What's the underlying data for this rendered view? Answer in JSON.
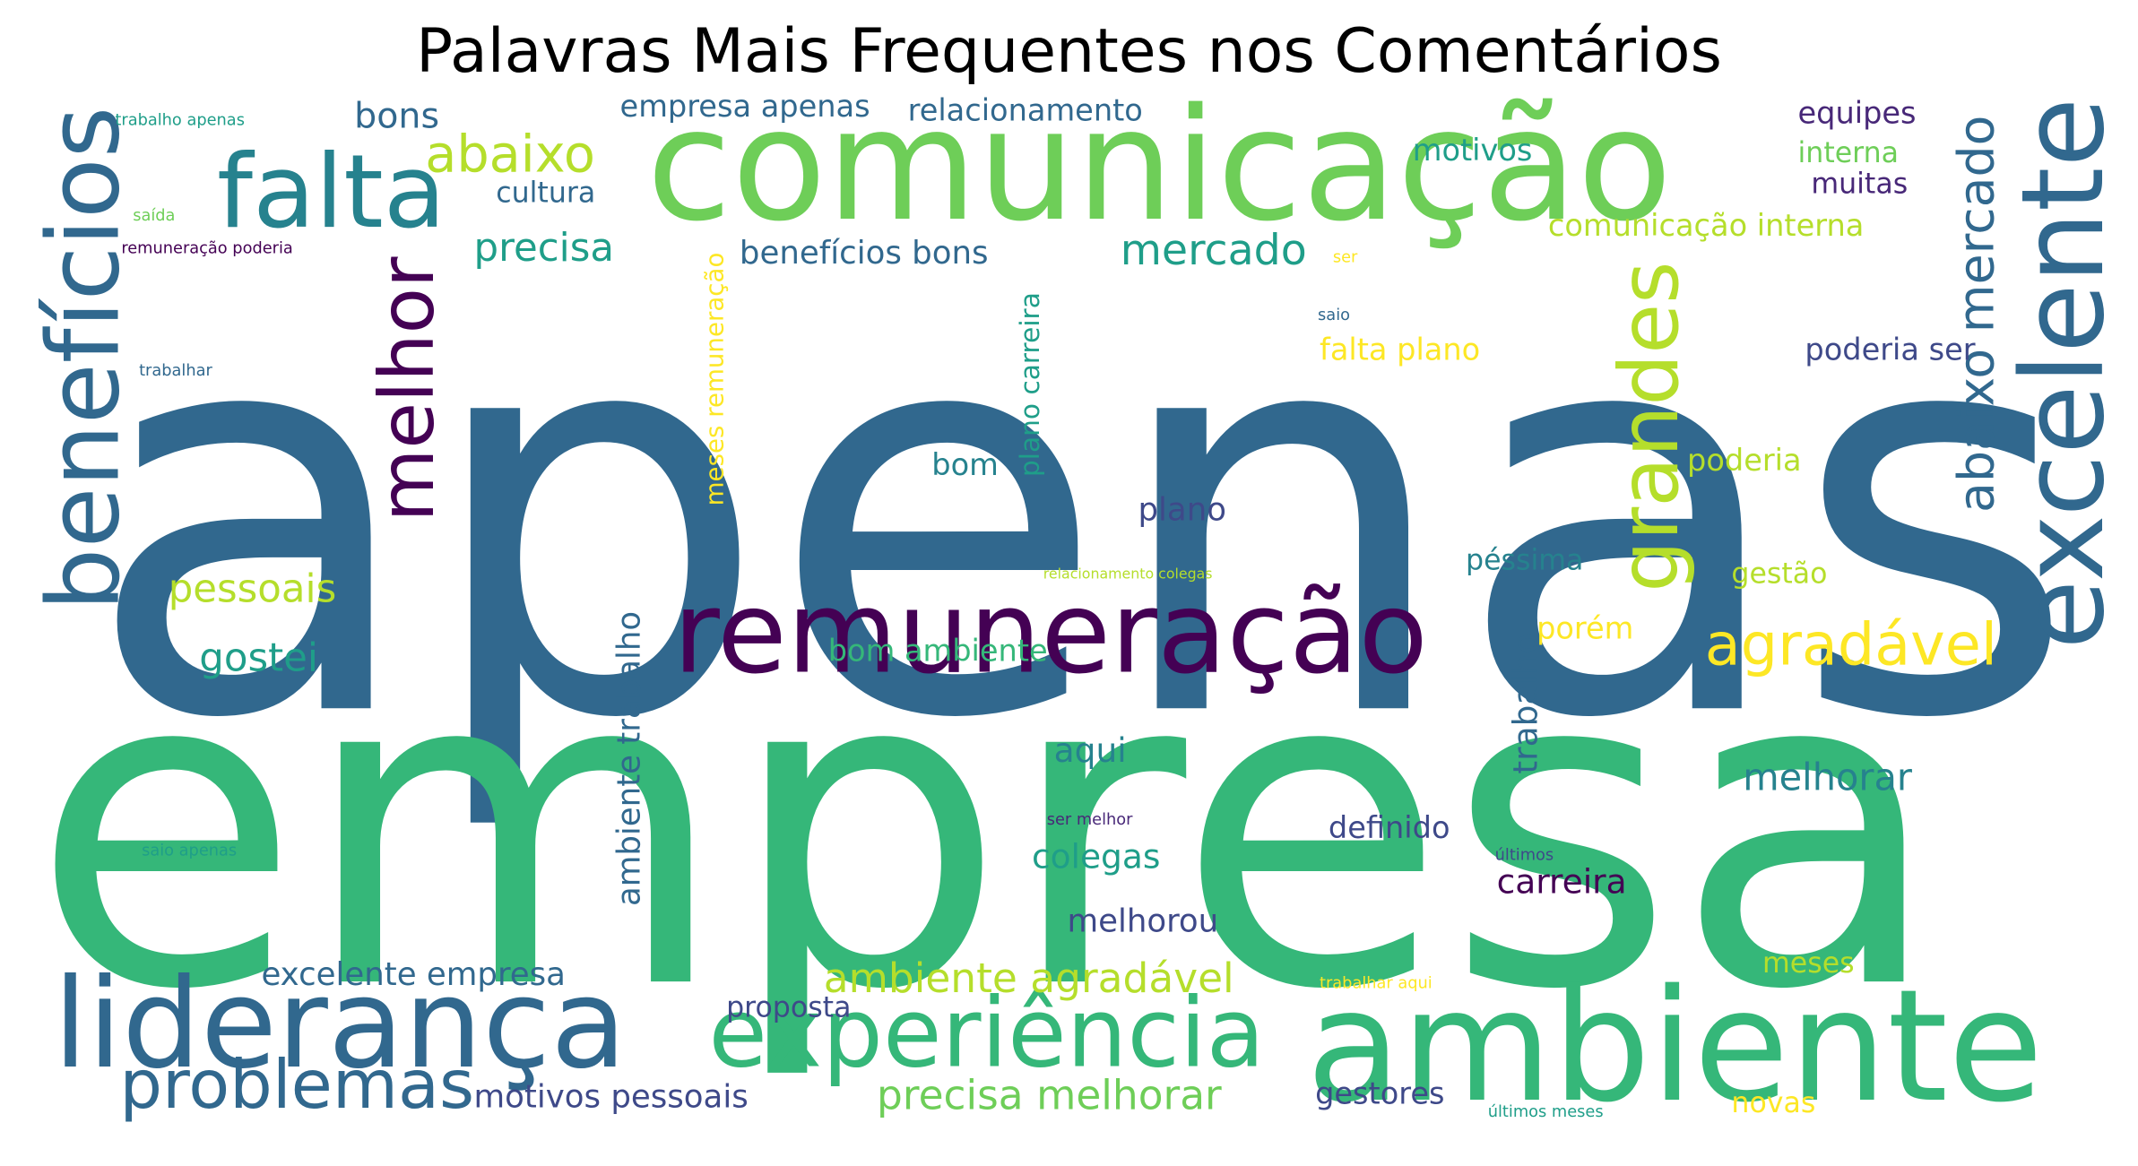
{
  "title": "Palavras Mais Frequentes nos Comentários",
  "palette": {
    "dark_purple": "#440154",
    "purple": "#482878",
    "slate": "#3e4989",
    "blue": "#31688e",
    "teal": "#26828e",
    "aqua": "#1f9e89",
    "green": "#35b779",
    "light_green": "#6ece58",
    "lime": "#b5de2b",
    "yellow": "#fde725"
  },
  "words": [
    {
      "text": "apenas",
      "c": "blue"
    },
    {
      "text": "empresa",
      "c": "green"
    },
    {
      "text": "comunicação",
      "c": "light_green"
    },
    {
      "text": "remuneração",
      "c": "dark_purple"
    },
    {
      "text": "ambiente",
      "c": "green"
    },
    {
      "text": "liderança",
      "c": "blue"
    },
    {
      "text": "experiência",
      "c": "green"
    },
    {
      "text": "excelente",
      "c": "blue"
    },
    {
      "text": "benefícios",
      "c": "blue"
    },
    {
      "text": "falta",
      "c": "teal"
    },
    {
      "text": "melhor",
      "c": "dark_purple"
    },
    {
      "text": "grandes",
      "c": "lime"
    },
    {
      "text": "problemas",
      "c": "blue"
    },
    {
      "text": "abaixo mercado",
      "c": "blue"
    },
    {
      "text": "agradável",
      "c": "yellow"
    },
    {
      "text": "abaixo",
      "c": "lime"
    },
    {
      "text": "mercado",
      "c": "aqua"
    },
    {
      "text": "precisa",
      "c": "aqua"
    },
    {
      "text": "pessoais",
      "c": "lime"
    },
    {
      "text": "gostei",
      "c": "aqua"
    },
    {
      "text": "ambiente agradável",
      "c": "lime"
    },
    {
      "text": "precisa melhorar",
      "c": "light_green"
    },
    {
      "text": "melhorar",
      "c": "teal"
    },
    {
      "text": "excelente empresa",
      "c": "blue"
    },
    {
      "text": "motivos pessoais",
      "c": "slate"
    },
    {
      "text": "benefícios bons",
      "c": "blue"
    },
    {
      "text": "bons",
      "c": "blue"
    },
    {
      "text": "cultura",
      "c": "blue"
    },
    {
      "text": "empresa apenas",
      "c": "blue"
    },
    {
      "text": "relacionamento",
      "c": "blue"
    },
    {
      "text": "motivos",
      "c": "aqua"
    },
    {
      "text": "equipes",
      "c": "purple"
    },
    {
      "text": "interna",
      "c": "light_green"
    },
    {
      "text": "muitas",
      "c": "purple"
    },
    {
      "text": "comunicação interna",
      "c": "lime"
    },
    {
      "text": "falta plano",
      "c": "yellow"
    },
    {
      "text": "poderia ser",
      "c": "slate"
    },
    {
      "text": "poderia",
      "c": "lime"
    },
    {
      "text": "gestão",
      "c": "lime"
    },
    {
      "text": "péssima",
      "c": "teal"
    },
    {
      "text": "porém",
      "c": "yellow"
    },
    {
      "text": "bom ambiente",
      "c": "green"
    },
    {
      "text": "bom",
      "c": "teal"
    },
    {
      "text": "plano",
      "c": "slate"
    },
    {
      "text": "aqui",
      "c": "teal"
    },
    {
      "text": "colegas",
      "c": "aqua"
    },
    {
      "text": "melhorou",
      "c": "slate"
    },
    {
      "text": "definido",
      "c": "slate"
    },
    {
      "text": "carreira",
      "c": "dark_purple"
    },
    {
      "text": "meses",
      "c": "lime"
    },
    {
      "text": "gestores",
      "c": "slate"
    },
    {
      "text": "novas",
      "c": "yellow"
    },
    {
      "text": "proposta",
      "c": "slate"
    },
    {
      "text": "trabalho",
      "c": "blue"
    },
    {
      "text": "ambiente trabalho",
      "c": "blue"
    },
    {
      "text": "meses remuneração",
      "c": "yellow"
    },
    {
      "text": "plano carreira",
      "c": "aqua"
    },
    {
      "text": "trabalho apenas",
      "c": "aqua"
    },
    {
      "text": "saída",
      "c": "light_green"
    },
    {
      "text": "remuneração poderia",
      "c": "dark_purple"
    },
    {
      "text": "trabalhar",
      "c": "blue"
    },
    {
      "text": "ser",
      "c": "yellow"
    },
    {
      "text": "saio",
      "c": "blue"
    },
    {
      "text": "relacionamento colegas",
      "c": "lime"
    },
    {
      "text": "ser melhor",
      "c": "purple"
    },
    {
      "text": "últimos",
      "c": "slate"
    },
    {
      "text": "saio apenas",
      "c": "aqua"
    },
    {
      "text": "trabalhar aqui",
      "c": "yellow"
    },
    {
      "text": "últimos meses",
      "c": "aqua"
    }
  ]
}
